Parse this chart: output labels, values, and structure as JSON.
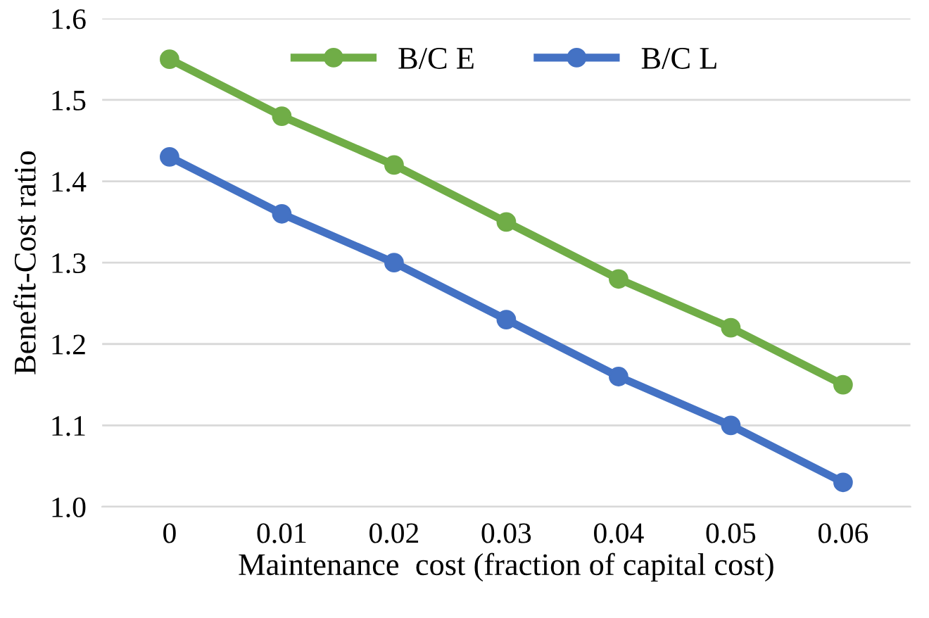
{
  "chart_data": {
    "type": "line",
    "xlabel": "Maintenance  cost (fraction of capital cost)",
    "ylabel": "Benefit-Cost ratio",
    "categories": [
      "0",
      "0.01",
      "0.02",
      "0.03",
      "0.04",
      "0.05",
      "0.06"
    ],
    "series": [
      {
        "name": "B/C E",
        "color": "#70ad47",
        "values": [
          1.55,
          1.48,
          1.42,
          1.35,
          1.28,
          1.22,
          1.15
        ]
      },
      {
        "name": "B/C L",
        "color": "#4472c4",
        "values": [
          1.43,
          1.36,
          1.3,
          1.23,
          1.16,
          1.1,
          1.03
        ]
      }
    ],
    "ylim": [
      1.0,
      1.6
    ],
    "yticks": [
      {
        "value": 1.0,
        "label": "1.0"
      },
      {
        "value": 1.1,
        "label": "1.1"
      },
      {
        "value": 1.2,
        "label": "1.2"
      },
      {
        "value": 1.3,
        "label": "1.3"
      },
      {
        "value": 1.4,
        "label": "1.4"
      },
      {
        "value": 1.5,
        "label": "1.5"
      },
      {
        "value": 1.6,
        "label": "1.6"
      }
    ],
    "grid": "y",
    "legend": "top",
    "marker": "circle",
    "line_style": "solid"
  }
}
